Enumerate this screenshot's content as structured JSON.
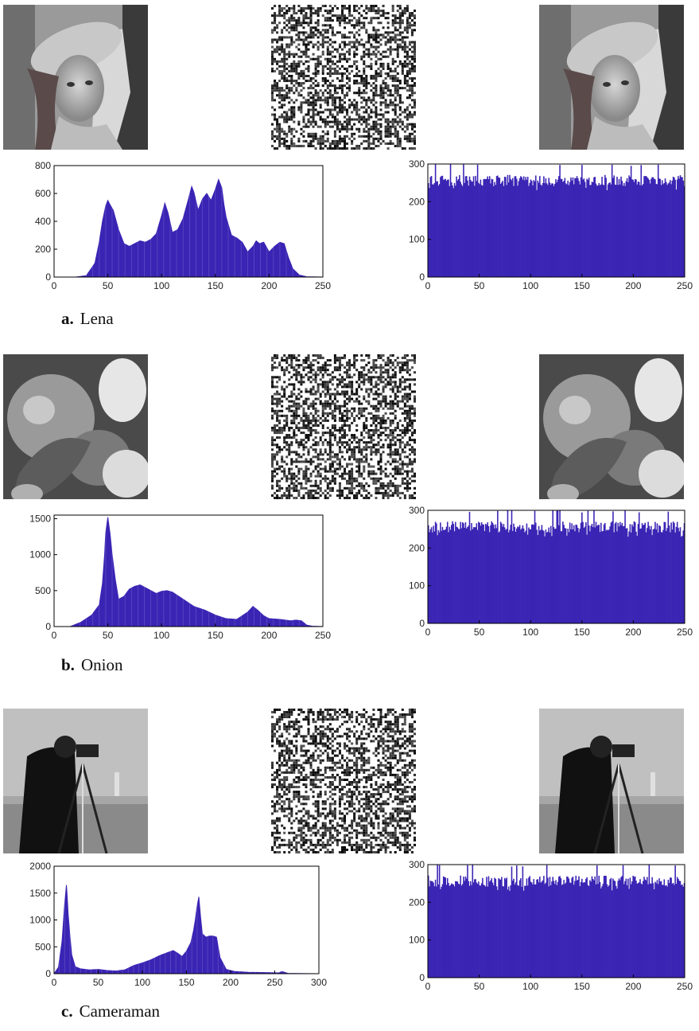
{
  "colors": {
    "bar": "#3a24b4",
    "bar_light": "#5a48c8",
    "axis": "#000000"
  },
  "panels": [
    {
      "letter": "a.",
      "name": "Lena",
      "image_icons": [
        "lena-original-image",
        "lena-encrypted-image",
        "lena-decrypted-image"
      ],
      "plain_hist": {
        "x_ticks": [
          0,
          50,
          100,
          150,
          200,
          250
        ],
        "y_ticks": [
          0,
          200,
          400,
          600,
          800
        ]
      },
      "cipher_hist": {
        "x_ticks": [
          0,
          50,
          100,
          150,
          200,
          250
        ],
        "y_ticks": [
          0,
          100,
          200,
          300
        ]
      }
    },
    {
      "letter": "b.",
      "name": "Onion",
      "image_icons": [
        "onion-original-image",
        "onion-encrypted-image",
        "onion-decrypted-image"
      ],
      "plain_hist": {
        "x_ticks": [
          0,
          50,
          100,
          150,
          200,
          250
        ],
        "y_ticks": [
          0,
          500,
          1000,
          1500
        ]
      },
      "cipher_hist": {
        "x_ticks": [
          0,
          50,
          100,
          150,
          200,
          250
        ],
        "y_ticks": [
          0,
          100,
          200,
          300
        ]
      }
    },
    {
      "letter": "c.",
      "name": "Cameraman",
      "image_icons": [
        "cameraman-original-image",
        "cameraman-encrypted-image",
        "cameraman-decrypted-image"
      ],
      "plain_hist": {
        "x_ticks": [
          0,
          50,
          100,
          150,
          200,
          250,
          300
        ],
        "y_ticks": [
          0,
          500,
          1000,
          1500,
          2000
        ]
      },
      "cipher_hist": {
        "x_ticks": [
          0,
          50,
          100,
          150,
          200,
          250
        ],
        "y_ticks": [
          0,
          100,
          200,
          300
        ]
      }
    }
  ],
  "chart_data": [
    {
      "type": "area",
      "title": "",
      "xlabel": "",
      "ylabel": "",
      "xlim": [
        0,
        250
      ],
      "ylim": [
        0,
        800
      ],
      "x": [
        0,
        20,
        30,
        38,
        42,
        45,
        48,
        50,
        52,
        55,
        60,
        65,
        70,
        75,
        80,
        85,
        90,
        95,
        100,
        103,
        106,
        110,
        115,
        120,
        125,
        128,
        130,
        134,
        138,
        142,
        146,
        150,
        153,
        156,
        158,
        160,
        165,
        170,
        175,
        180,
        185,
        188,
        191,
        195,
        200,
        205,
        210,
        214,
        218,
        222,
        228,
        235,
        250
      ],
      "values": [
        0,
        0,
        10,
        100,
        250,
        400,
        510,
        550,
        520,
        480,
        340,
        240,
        220,
        240,
        260,
        250,
        270,
        310,
        440,
        530,
        460,
        320,
        340,
        420,
        560,
        650,
        610,
        480,
        560,
        600,
        550,
        630,
        700,
        640,
        520,
        430,
        300,
        280,
        250,
        180,
        220,
        260,
        240,
        250,
        180,
        220,
        250,
        240,
        140,
        60,
        15,
        2,
        0
      ]
    },
    {
      "type": "bar",
      "title": "",
      "xlabel": "",
      "ylabel": "",
      "xlim": [
        0,
        250
      ],
      "ylim": [
        0,
        300
      ],
      "bins": 256,
      "values_summary": {
        "min": 230,
        "max": 300,
        "mean": 256
      }
    },
    {
      "type": "area",
      "title": "",
      "xlabel": "",
      "ylabel": "",
      "xlim": [
        0,
        250
      ],
      "ylim": [
        0,
        1550
      ],
      "x": [
        0,
        15,
        25,
        35,
        42,
        45,
        47,
        48,
        50,
        52,
        54,
        57,
        60,
        65,
        70,
        75,
        80,
        85,
        90,
        95,
        100,
        105,
        110,
        115,
        120,
        125,
        130,
        140,
        150,
        160,
        170,
        180,
        185,
        190,
        195,
        200,
        210,
        220,
        225,
        230,
        235,
        240,
        250
      ],
      "values": [
        0,
        0,
        60,
        160,
        300,
        600,
        1000,
        1300,
        1520,
        1300,
        1000,
        650,
        380,
        420,
        520,
        560,
        580,
        540,
        500,
        460,
        490,
        500,
        480,
        430,
        380,
        330,
        280,
        230,
        160,
        110,
        100,
        200,
        280,
        220,
        150,
        110,
        100,
        80,
        90,
        80,
        20,
        5,
        0
      ]
    },
    {
      "type": "bar",
      "title": "",
      "xlabel": "",
      "ylabel": "",
      "xlim": [
        0,
        250
      ],
      "ylim": [
        0,
        300
      ],
      "bins": 256,
      "values_summary": {
        "min": 230,
        "max": 300,
        "mean": 256
      }
    },
    {
      "type": "area",
      "title": "",
      "xlabel": "",
      "ylabel": "",
      "xlim": [
        0,
        300
      ],
      "ylim": [
        0,
        2000
      ],
      "x": [
        0,
        5,
        9,
        12,
        14,
        15,
        16,
        18,
        20,
        24,
        30,
        40,
        50,
        60,
        70,
        80,
        90,
        100,
        110,
        120,
        130,
        135,
        140,
        145,
        150,
        155,
        158,
        160,
        162,
        164,
        166,
        168,
        172,
        176,
        180,
        184,
        188,
        195,
        205,
        220,
        240,
        255,
        258,
        265,
        300
      ],
      "values": [
        0,
        120,
        600,
        1300,
        1650,
        1400,
        1100,
        700,
        350,
        130,
        90,
        70,
        80,
        60,
        50,
        70,
        150,
        200,
        260,
        340,
        400,
        430,
        380,
        320,
        420,
        580,
        800,
        1000,
        1250,
        1430,
        1050,
        740,
        680,
        700,
        700,
        680,
        300,
        80,
        40,
        25,
        20,
        15,
        40,
        5,
        0
      ]
    },
    {
      "type": "bar",
      "title": "",
      "xlabel": "",
      "ylabel": "",
      "xlim": [
        0,
        250
      ],
      "ylim": [
        0,
        300
      ],
      "bins": 256,
      "values_summary": {
        "min": 230,
        "max": 300,
        "mean": 256
      }
    }
  ]
}
